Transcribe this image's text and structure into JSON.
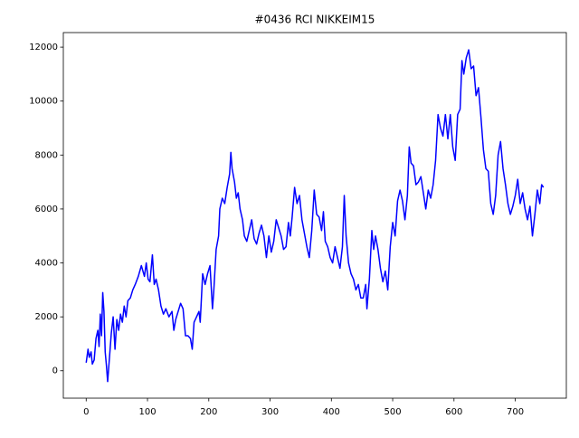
{
  "chart_data": {
    "type": "line",
    "title": "#0436 RCI NIKKEIM15",
    "x": [
      0,
      3,
      5,
      8,
      10,
      13,
      16,
      19,
      21,
      23,
      25,
      27,
      29,
      31,
      33,
      35,
      38,
      41,
      44,
      47,
      50,
      53,
      56,
      59,
      62,
      65,
      68,
      72,
      76,
      80,
      85,
      90,
      95,
      98,
      101,
      104,
      108,
      111,
      114,
      118,
      122,
      126,
      130,
      135,
      140,
      143,
      146,
      150,
      154,
      158,
      162,
      166,
      170,
      173,
      176,
      180,
      184,
      186,
      190,
      194,
      198,
      202,
      204,
      206,
      208,
      212,
      216,
      218,
      222,
      226,
      230,
      234,
      236,
      238,
      242,
      245,
      248,
      251,
      255,
      258,
      262,
      266,
      270,
      274,
      278,
      282,
      286,
      290,
      294,
      298,
      302,
      306,
      310,
      314,
      318,
      322,
      326,
      330,
      333,
      336,
      340,
      344,
      348,
      352,
      356,
      360,
      364,
      368,
      372,
      376,
      380,
      384,
      387,
      390,
      394,
      398,
      402,
      406,
      410,
      414,
      418,
      421,
      424,
      428,
      432,
      436,
      440,
      444,
      448,
      452,
      456,
      458,
      462,
      466,
      469,
      472,
      476,
      480,
      484,
      488,
      492,
      496,
      500,
      504,
      508,
      512,
      516,
      520,
      524,
      527,
      530,
      534,
      538,
      542,
      546,
      550,
      554,
      558,
      562,
      566,
      570,
      574,
      578,
      582,
      586,
      590,
      594,
      598,
      602,
      606,
      610,
      613,
      616,
      620,
      624,
      628,
      632,
      636,
      640,
      644,
      648,
      652,
      656,
      660,
      664,
      668,
      672,
      676,
      680,
      684,
      688,
      692,
      696,
      700,
      704,
      708,
      712,
      716,
      720,
      724,
      728,
      732,
      736,
      740,
      743,
      746
    ],
    "series": [
      {
        "color": "#0000ff",
        "values": [
          300,
          800,
          500,
          700,
          250,
          400,
          1200,
          1500,
          900,
          2100,
          1300,
          2900,
          2200,
          700,
          200,
          -400,
          500,
          1400,
          2000,
          800,
          1900,
          1500,
          2100,
          1800,
          2400,
          2000,
          2600,
          2700,
          3000,
          3200,
          3500,
          3900,
          3500,
          4000,
          3400,
          3300,
          4300,
          3200,
          3400,
          3000,
          2400,
          2100,
          2300,
          2000,
          2200,
          1500,
          1900,
          2200,
          2500,
          2300,
          1300,
          1300,
          1200,
          800,
          1800,
          2000,
          2200,
          1800,
          3600,
          3200,
          3600,
          3900,
          3100,
          2300,
          2900,
          4500,
          5000,
          6000,
          6400,
          6200,
          6800,
          7300,
          8100,
          7500,
          7000,
          6400,
          6600,
          6000,
          5600,
          5000,
          4800,
          5200,
          5600,
          4900,
          4700,
          5100,
          5400,
          5000,
          4200,
          5000,
          4400,
          4800,
          5600,
          5300,
          5000,
          4500,
          4600,
          5500,
          5000,
          5700,
          6800,
          6200,
          6500,
          5600,
          5100,
          4600,
          4200,
          5200,
          6700,
          5800,
          5700,
          5200,
          5900,
          4800,
          4600,
          4200,
          4000,
          4600,
          4200,
          3800,
          4600,
          6500,
          5000,
          4000,
          3600,
          3400,
          3000,
          3200,
          2700,
          2700,
          3200,
          2300,
          3400,
          5200,
          4500,
          5000,
          4500,
          3800,
          3300,
          3700,
          3000,
          4600,
          5500,
          5000,
          6300,
          6700,
          6300,
          5600,
          6500,
          8300,
          7700,
          7600,
          6900,
          7000,
          7200,
          6600,
          6000,
          6700,
          6400,
          6900,
          7800,
          9500,
          9000,
          8700,
          9500,
          8600,
          9500,
          8300,
          7800,
          9500,
          9700,
          11500,
          11000,
          11600,
          11900,
          11200,
          11300,
          10200,
          10500,
          9400,
          8200,
          7500,
          7400,
          6200,
          5800,
          6500,
          8000,
          8500,
          7500,
          6900,
          6200,
          5800,
          6100,
          6500,
          7100,
          6200,
          6600,
          6000,
          5600,
          6100,
          5000,
          5800,
          6700,
          6200,
          6900,
          6800
        ]
      }
    ],
    "xlim": [
      -37.3,
      783.3
    ],
    "ylim": [
      -1015,
      12540
    ],
    "xticks": [
      0,
      100,
      200,
      300,
      400,
      500,
      600,
      700
    ],
    "yticks": [
      0,
      2000,
      4000,
      6000,
      8000,
      10000,
      12000
    ],
    "grid": false
  }
}
